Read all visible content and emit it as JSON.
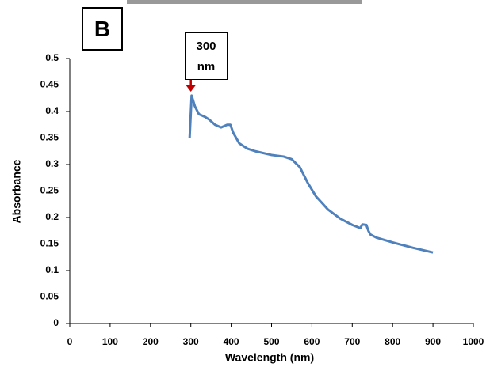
{
  "chart_data": {
    "type": "line",
    "panel_label": "B",
    "annotation": "300 nm",
    "x_label": "Wavelength (nm)",
    "y_label": "Absorbance",
    "x": [
      297,
      302,
      310,
      320,
      335,
      345,
      360,
      375,
      390,
      398,
      405,
      420,
      440,
      460,
      500,
      530,
      550,
      570,
      590,
      610,
      640,
      670,
      700,
      720,
      725,
      735,
      740,
      745,
      760,
      800,
      850,
      900
    ],
    "series": [
      {
        "name": "Absorbance",
        "color": "#4f81bd",
        "values": [
          0.35,
          0.43,
          0.41,
          0.395,
          0.39,
          0.385,
          0.375,
          0.37,
          0.375,
          0.375,
          0.36,
          0.34,
          0.33,
          0.325,
          0.318,
          0.315,
          0.31,
          0.295,
          0.265,
          0.24,
          0.215,
          0.198,
          0.186,
          0.18,
          0.187,
          0.186,
          0.175,
          0.168,
          0.162,
          0.153,
          0.143,
          0.134
        ]
      }
    ],
    "xlim": [
      0,
      1000
    ],
    "xticks": [
      0,
      100,
      200,
      300,
      400,
      500,
      600,
      700,
      800,
      900,
      1000
    ],
    "ylim": [
      0,
      0.5
    ],
    "yticks": [
      0,
      0.05,
      0.1,
      0.15,
      0.2,
      0.25,
      0.3,
      0.35,
      0.4,
      0.45,
      0.5
    ],
    "arrow_x": 300,
    "arrow_color": "#c00000",
    "grid": false
  }
}
